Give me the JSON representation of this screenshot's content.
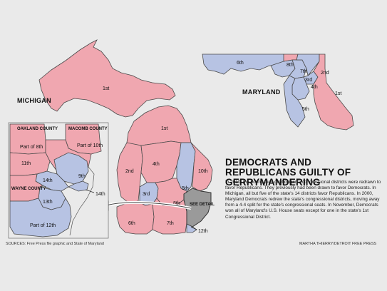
{
  "states": {
    "michigan": "MICHIGAN",
    "maryland": "MARYLAND"
  },
  "michigan_districts": {
    "d1_up": "1st",
    "d1": "1st",
    "d2": "2nd",
    "d3": "3rd",
    "d4": "4th",
    "d5": "5th",
    "d6": "6th",
    "d7": "7th",
    "d8": "8th",
    "d10": "10th",
    "d12": "12th"
  },
  "detail": {
    "oakland": "OAKLAND COUNTY",
    "macomb": "MACOMB COUNTY",
    "wayne": "WAYNE COUNTY",
    "part8": "Part of 8th",
    "part10": "Part of 10th",
    "part12": "Part of 12th",
    "d9": "9th",
    "d11": "11th",
    "d13": "13th",
    "d14": "14th",
    "d14b": "14th",
    "see_detail": "SEE DETAIL"
  },
  "maryland_districts": {
    "d1": "1st",
    "d2": "2nd",
    "d3": "3rd",
    "d4": "4th",
    "d5": "5th",
    "d6": "6th",
    "d7": "7th",
    "d8": "8th"
  },
  "headline": "DEMOCRATS AND REPUBLICANS GUILTY OF GERRYMANDERING",
  "body": "In 2010, the boundaries of Michigan's congressional districts were redrawn to favor Republicans. They previously had been drawn to favor Democrats. In Michigan, all but five of the state's 14 districts favor Republicans. In 2000, Maryland Democrats redrew the state's congressional districts, moving away from a 4-4 split for the state's congressional seats. In November, Democrats won all of Maryland's U.S. House seats except for one in the state's 1st Congressional District.",
  "source": "SOURCES: Free Press file graphic and State of Maryland",
  "credit": "MARTHA THIERRY/DETROIT FREE PRESS",
  "colors": {
    "republican": "#f0a7b0",
    "democrat": "#b7c3e3",
    "background": "#eaeaea"
  }
}
